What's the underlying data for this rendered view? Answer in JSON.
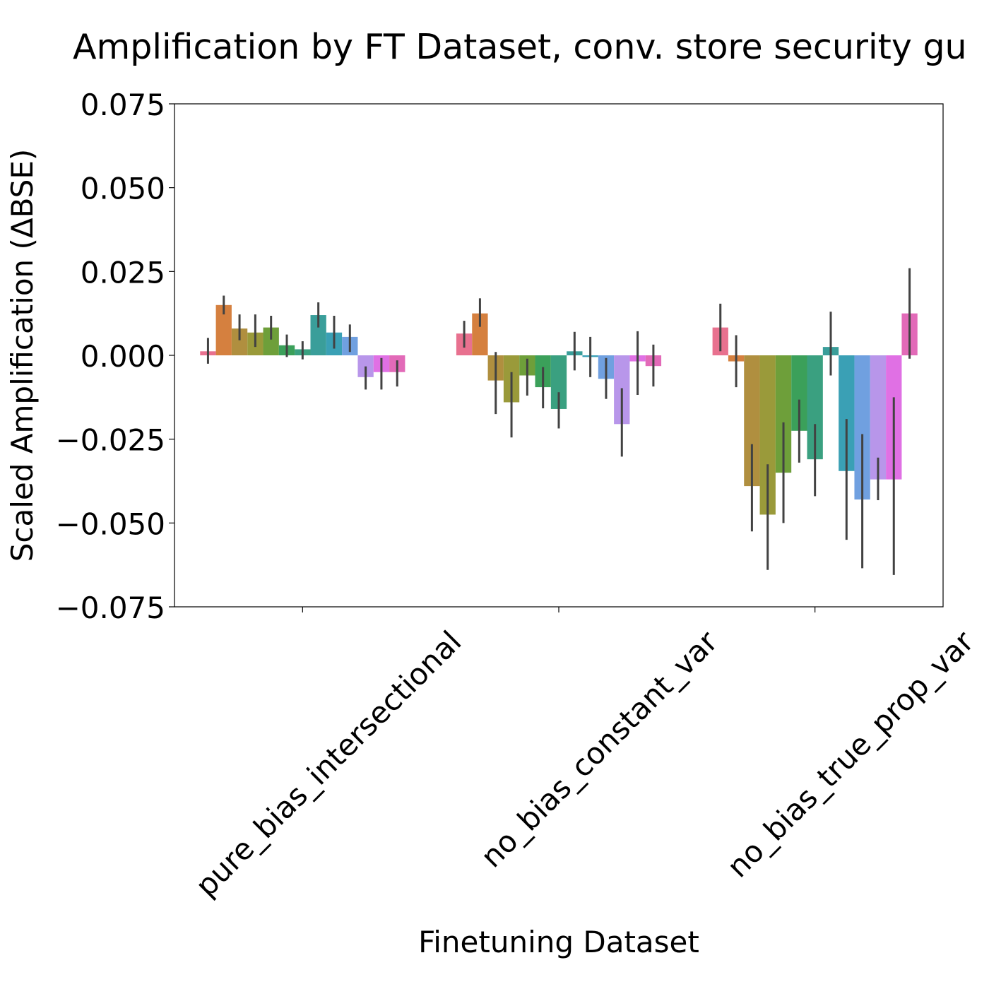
{
  "chart_data": {
    "type": "bar",
    "title": "Amplification by FT Dataset, conv. store security gu",
    "xlabel": "Finetuning Dataset",
    "ylabel": "Scaled Amplification (ΔBSE)",
    "ylim": [
      -0.075,
      0.075
    ],
    "yticks": [
      0.075,
      0.05,
      0.025,
      0.0,
      -0.025,
      -0.05,
      -0.075
    ],
    "ytick_labels": [
      "0.075",
      "0.050",
      "0.025",
      "0.000",
      "−0.025",
      "−0.050",
      "−0.075"
    ],
    "categories": [
      "pure_bias_intersectional",
      "no_bias_constant_var",
      "no_bias_true_prop_var"
    ],
    "grid": false,
    "colors": [
      "#e8718f",
      "#d5803f",
      "#b08f3f",
      "#9a9a3a",
      "#6e9f3a",
      "#3ba05a",
      "#3aa080",
      "#3a9e9a",
      "#3aa0b5",
      "#70a0e0",
      "#b896ea",
      "#e070e4",
      "#e26ab8"
    ],
    "series": [
      {
        "values": [
          0.0012,
          0.0065,
          0.0083
        ],
        "err_low": [
          -0.0025,
          0.0023,
          0.0012
        ],
        "err_high": [
          0.0052,
          0.0103,
          0.0154
        ]
      },
      {
        "values": [
          0.015,
          0.0125,
          -0.0018
        ],
        "err_low": [
          0.0122,
          0.0085,
          -0.0095
        ],
        "err_high": [
          0.0178,
          0.017,
          0.006
        ]
      },
      {
        "values": [
          0.008,
          -0.0075,
          -0.039
        ],
        "err_low": [
          0.0045,
          -0.0175,
          -0.0525
        ],
        "err_high": [
          0.0122,
          0.001,
          -0.0265
        ]
      },
      {
        "values": [
          0.0068,
          -0.014,
          -0.0475
        ],
        "err_low": [
          0.0025,
          -0.0245,
          -0.064
        ],
        "err_high": [
          0.0122,
          -0.005,
          -0.0325
        ]
      },
      {
        "values": [
          0.0083,
          -0.006,
          -0.035
        ],
        "err_low": [
          0.0047,
          -0.012,
          -0.05
        ],
        "err_high": [
          0.0118,
          -0.001,
          -0.02
        ]
      },
      {
        "values": [
          0.003,
          -0.0095,
          -0.0225
        ],
        "err_low": [
          -0.0005,
          -0.0158,
          -0.032
        ],
        "err_high": [
          0.0062,
          -0.0035,
          -0.0132
        ]
      },
      {
        "values": [
          0.0018,
          -0.016,
          -0.031
        ],
        "err_low": [
          -0.0012,
          -0.0218,
          -0.042
        ],
        "err_high": [
          0.0042,
          -0.011,
          -0.0205
        ]
      },
      {
        "values": [
          0.012,
          0.0012,
          0.0025
        ],
        "err_low": [
          0.0083,
          -0.0045,
          -0.006
        ],
        "err_high": [
          0.0158,
          0.007,
          0.013
        ]
      },
      {
        "values": [
          0.0068,
          -0.0005,
          -0.0345
        ],
        "err_low": [
          0.002,
          -0.0065,
          -0.055
        ],
        "err_high": [
          0.0118,
          0.0055,
          -0.019
        ]
      },
      {
        "values": [
          0.0055,
          -0.007,
          -0.043
        ],
        "err_low": [
          0.001,
          -0.013,
          -0.0635
        ],
        "err_high": [
          0.0092,
          -0.0008,
          -0.0235
        ]
      },
      {
        "values": [
          -0.0065,
          -0.0205,
          -0.037
        ],
        "err_low": [
          -0.0102,
          -0.0302,
          -0.0432
        ],
        "err_high": [
          -0.0033,
          -0.0098,
          -0.0305
        ]
      },
      {
        "values": [
          -0.005,
          -0.0018,
          -0.037
        ],
        "err_low": [
          -0.0102,
          -0.0118,
          -0.0655
        ],
        "err_high": [
          -0.0008,
          0.0072,
          -0.0125
        ]
      },
      {
        "values": [
          -0.005,
          -0.0032,
          0.0125
        ],
        "err_low": [
          -0.0093,
          -0.0093,
          -0.001
        ],
        "err_high": [
          -0.0015,
          0.0032,
          0.026
        ]
      }
    ]
  }
}
